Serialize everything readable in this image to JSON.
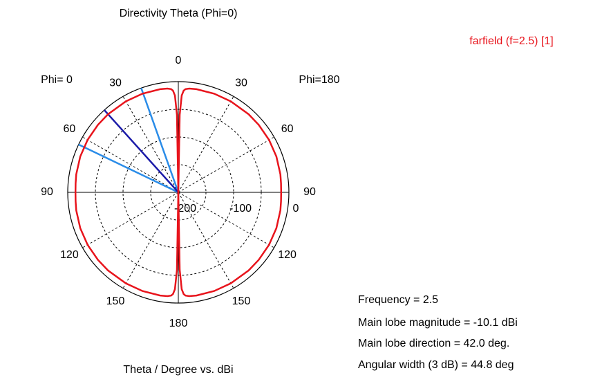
{
  "chart_data": {
    "type": "polar",
    "title": "Directivity Theta (Phi=0)",
    "axis_label": "Theta / Degree vs. dBi",
    "phi_labels": [
      "Phi= 0",
      "Phi=180"
    ],
    "angle_ticks": [
      0,
      30,
      60,
      90,
      120,
      150,
      180
    ],
    "rlim": [
      -200,
      0
    ],
    "rticks": [
      -200,
      -100,
      0
    ],
    "series": [
      {
        "name": "farfield (f=2.5) [1]",
        "color": "#e8141c",
        "theta": [
          0,
          1,
          2,
          3,
          4,
          6,
          10,
          20,
          30,
          42,
          50,
          60,
          70,
          80,
          85,
          90,
          95,
          100,
          110,
          120,
          130,
          138,
          150,
          160,
          170,
          174,
          176,
          177,
          178,
          179,
          180
        ],
        "values": [
          -200,
          -60,
          -25,
          -16,
          -13,
          -11.5,
          -10.8,
          -10.3,
          -10.15,
          -10.1,
          -10.2,
          -10.5,
          -11.2,
          -12.5,
          -13.5,
          -14,
          -13.5,
          -12.5,
          -11.2,
          -10.5,
          -10.2,
          -10.1,
          -10.15,
          -10.3,
          -10.8,
          -11.5,
          -13,
          -16,
          -25,
          -60,
          -200
        ]
      }
    ],
    "main_lobe_direction": 42.0,
    "angular_width_3db": 44.8,
    "main_lobe_color": "#1a1aa8",
    "beam_width_color": "#2a8ce8",
    "annotations": [
      "Frequency = 2.5",
      "Main lobe magnitude = -10.1 dBi",
      "Main lobe direction =   42.0 deg.",
      "Angular width (3 dB) =   44.8 deg"
    ]
  }
}
